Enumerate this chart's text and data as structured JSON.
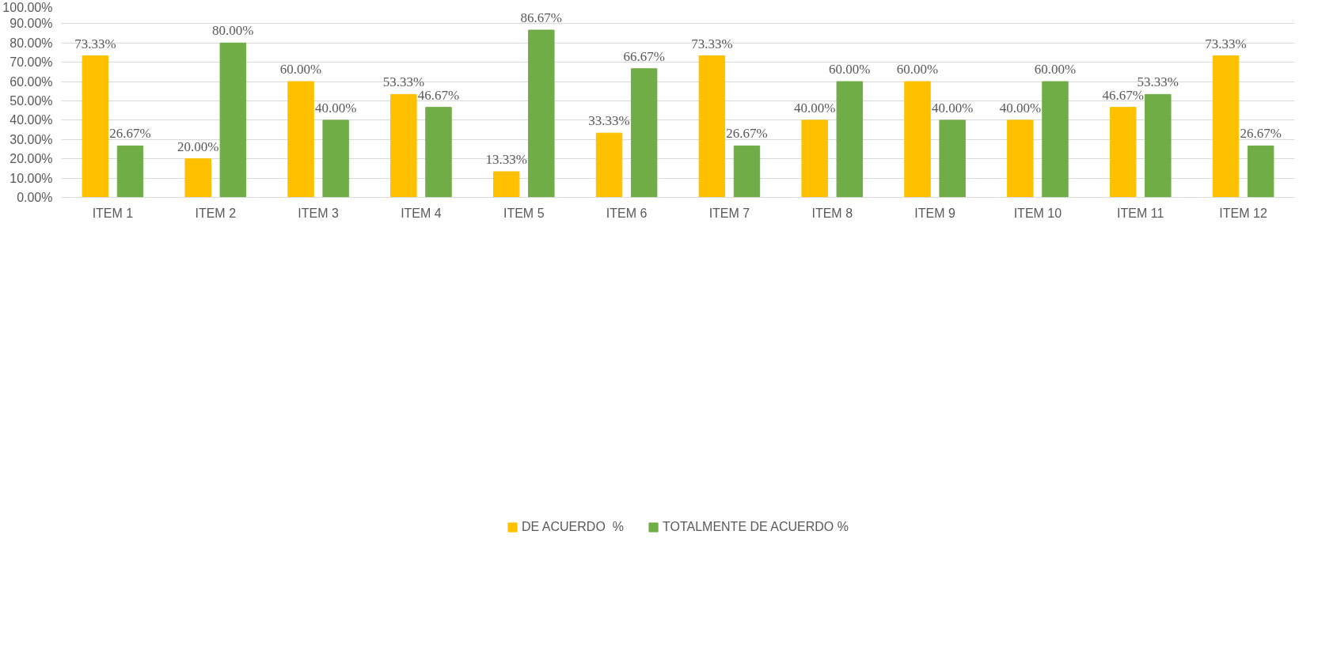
{
  "chart_data": {
    "type": "bar",
    "categories": [
      "ITEM 1",
      "ITEM 2",
      "ITEM 3",
      "ITEM 4",
      "ITEM 5",
      "ITEM 6",
      "ITEM 7",
      "ITEM 8",
      "ITEM 9",
      "ITEM 10",
      "ITEM 11",
      "ITEM 12"
    ],
    "series": [
      {
        "name": "DE ACUERDO  %",
        "color": "#ffc000",
        "values": [
          73.33,
          20,
          60,
          53.33,
          13.33,
          33.33,
          73.33,
          40,
          60,
          40,
          46.67,
          73.33
        ],
        "value_labels": [
          "73.33%",
          "20.00%",
          "60.00%",
          "53.33%",
          "13.33%",
          "33.33%",
          "73.33%",
          "40.00%",
          "60.00%",
          "40.00%",
          "46.67%",
          "73.33%"
        ]
      },
      {
        "name": "TOTALMENTE DE ACUERDO %",
        "color": "#70ad47",
        "values": [
          26.67,
          80,
          40,
          46.67,
          86.67,
          66.67,
          26.67,
          60,
          40,
          60,
          53.33,
          26.67
        ],
        "value_labels": [
          "26.67%",
          "80.00%",
          "40.00%",
          "46.67%",
          "86.67%",
          "66.67%",
          "26.67%",
          "60.00%",
          "40.00%",
          "60.00%",
          "53.33%",
          "26.67%"
        ]
      }
    ],
    "ylim": [
      0,
      100
    ],
    "yticks": [
      {
        "value": 0,
        "label": "0.00%"
      },
      {
        "value": 10,
        "label": "10.00%"
      },
      {
        "value": 20,
        "label": "20.00%"
      },
      {
        "value": 30,
        "label": "30.00%"
      },
      {
        "value": 40,
        "label": "40.00%"
      },
      {
        "value": 50,
        "label": "50.00%"
      },
      {
        "value": 60,
        "label": "60.00%"
      },
      {
        "value": 70,
        "label": "70.00%"
      },
      {
        "value": 80,
        "label": "80.00%"
      },
      {
        "value": 90,
        "label": "90.00%"
      },
      {
        "value": 100,
        "label": "100.00%"
      }
    ],
    "grid": "y",
    "legend": "bottom"
  }
}
